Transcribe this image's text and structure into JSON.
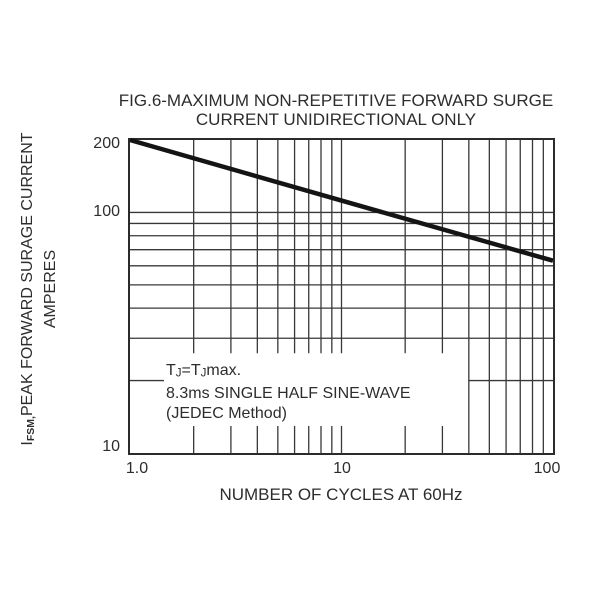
{
  "figure": {
    "title_line1": "FIG.6-MAXIMUM NON-REPETITIVE FORWARD SURGE",
    "title_line2": "CURRENT UNIDIRECTIONAL ONLY"
  },
  "colors": {
    "background": "#ffffff",
    "ink": "#2d2d2d",
    "grid": "#383838",
    "curve": "#141414"
  },
  "ylabel_rich": {
    "line1_parts": [
      {
        "text": "I"
      },
      {
        "text": "FSM,",
        "sub": true
      },
      {
        "text": "PEAK FORWARD SURAGE CURRENT"
      }
    ],
    "line2": "AMPERES"
  },
  "annotation_rich": {
    "line1_parts": [
      {
        "text": "T"
      },
      {
        "text": "J",
        "sub": true
      },
      {
        "text": "=T"
      },
      {
        "text": "J",
        "sub": true
      },
      {
        "text": "max."
      }
    ]
  },
  "chart_data": {
    "type": "line",
    "title": "FIG.6-MAXIMUM NON-REPETITIVE FORWARD SURGE CURRENT UNIDIRECTIONAL ONLY",
    "xlabel": "NUMBER OF CYCLES AT 60Hz",
    "ylabel": "IFSM,PEAK FORWARD SURAGE CURRENT AMPERES",
    "x_scale": "log",
    "y_scale": "log",
    "xlim": [
      1,
      100
    ],
    "ylim": [
      10,
      200
    ],
    "grid": "on",
    "legend": "none",
    "x_ticks": [
      {
        "value": 1,
        "label": "1.0"
      },
      {
        "value": 10,
        "label": "10"
      },
      {
        "value": 100,
        "label": "100"
      }
    ],
    "y_ticks": [
      {
        "value": 10,
        "label": "10"
      },
      {
        "value": 100,
        "label": "100"
      },
      {
        "value": 200,
        "label": "200"
      }
    ],
    "x_gridlines": [
      2,
      3,
      4,
      5,
      6,
      7,
      8,
      9,
      10,
      20,
      30,
      40,
      50,
      60,
      70,
      80,
      90
    ],
    "y_gridlines": [
      20,
      30,
      40,
      50,
      60,
      70,
      80,
      90,
      100
    ],
    "x_gridlines_interrupted": [
      2,
      3,
      4,
      5,
      6,
      7,
      8,
      9,
      10,
      20,
      30
    ],
    "y_gridlines_interrupted": [
      20
    ],
    "series": [
      {
        "name": "Maximum non-repetitive forward surge current",
        "x": [
          1,
          10,
          100
        ],
        "y": [
          200,
          112,
          63
        ]
      }
    ],
    "annotation": {
      "line1": "TJ=TJmax.",
      "line2": "8.3ms SINGLE HALF SINE-WAVE",
      "line3": "(JEDEC Method)"
    }
  }
}
